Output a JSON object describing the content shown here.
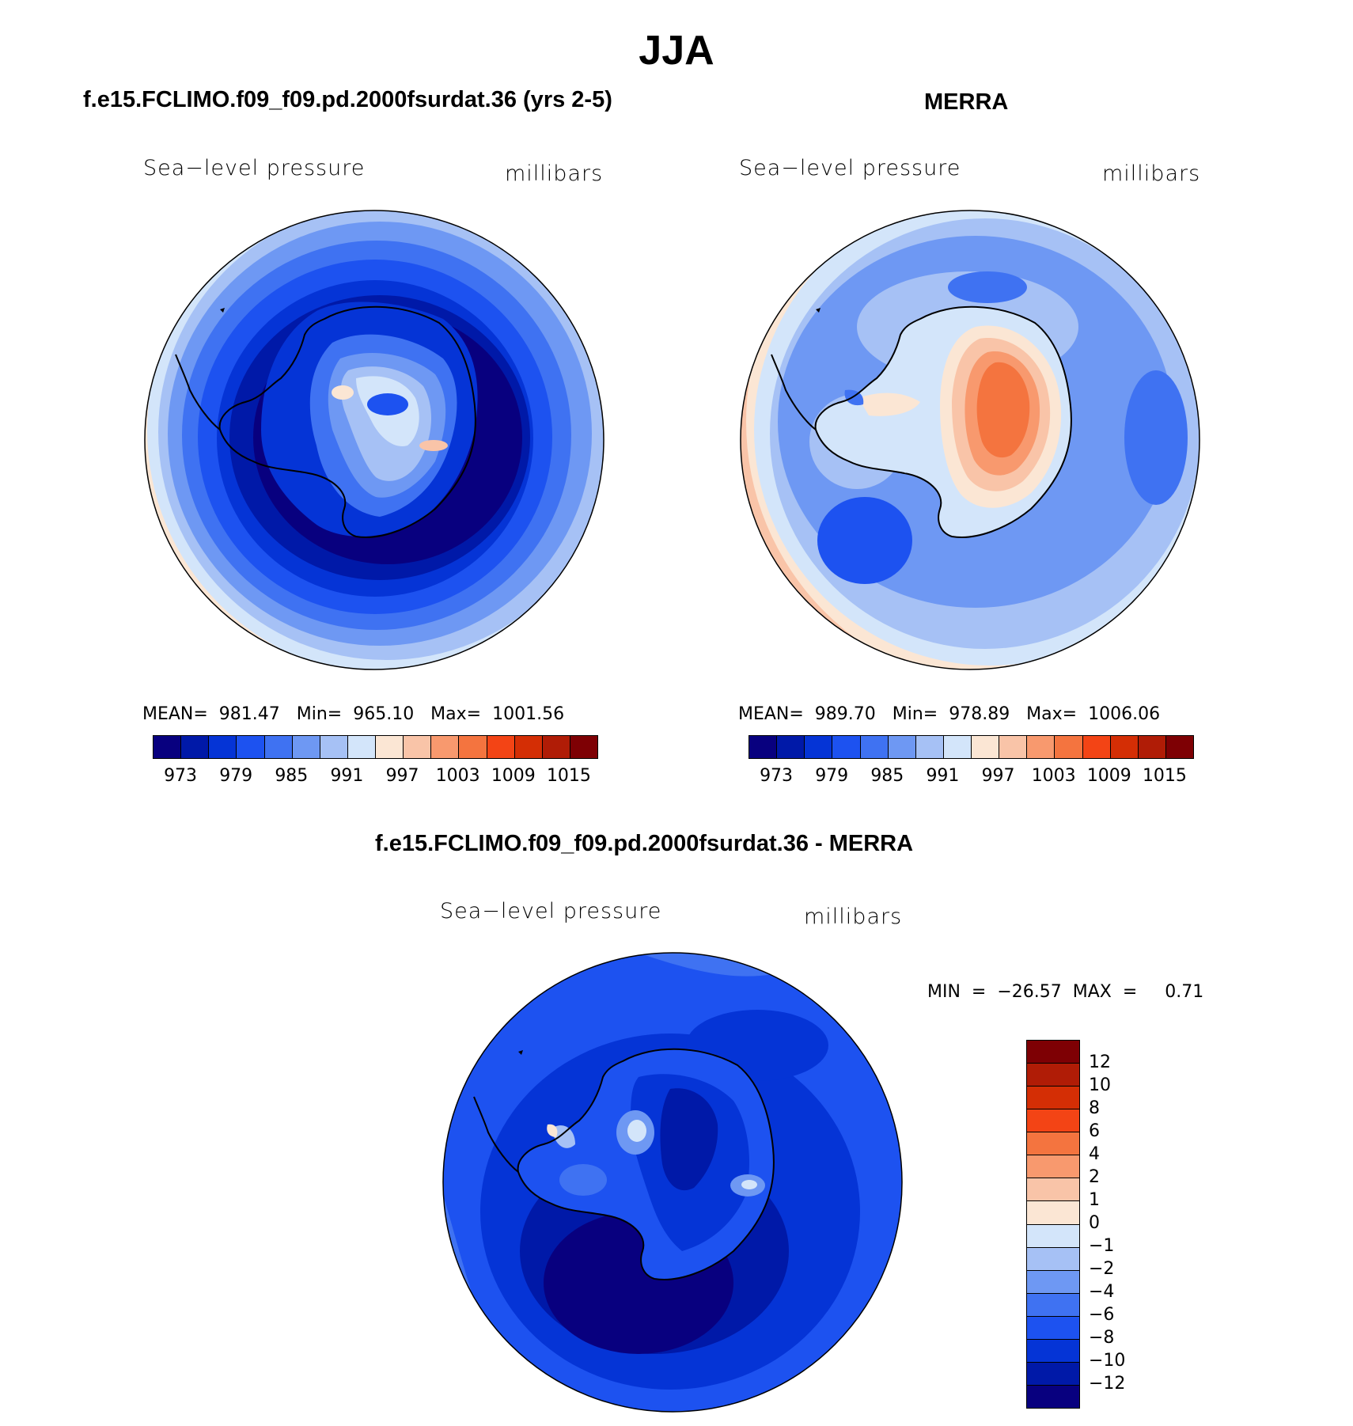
{
  "title": "JJA",
  "panels": [
    {
      "title": "f.e15.FCLIMO.f09_f09.pd.2000fsurdat.36 (yrs 2-5)",
      "variable": "Sea−level pressure",
      "units": "millibars",
      "stats": "MEAN=  981.47   Min=  965.10   Max=  1001.56",
      "colorbar_labels": [
        "973",
        "979",
        "985",
        "991",
        "997",
        "1003",
        "1009",
        "1015"
      ],
      "colorbar_colors": [
        "#08007f",
        "#0019a8",
        "#0534d6",
        "#1d52f0",
        "#3f72f2",
        "#6e98f3",
        "#a6c1f5",
        "#d3e5fa",
        "#fbe6d4",
        "#f9c4a8",
        "#f8996e",
        "#f4743f",
        "#f34415",
        "#d42e05",
        "#b01c06",
        "#7e0004"
      ]
    },
    {
      "title": "MERRA",
      "variable": "Sea−level pressure",
      "units": "millibars",
      "stats": "MEAN=  989.70   Min=  978.89   Max=  1006.06",
      "colorbar_labels": [
        "973",
        "979",
        "985",
        "991",
        "997",
        "1003",
        "1009",
        "1015"
      ],
      "colorbar_colors": [
        "#08007f",
        "#0019a8",
        "#0534d6",
        "#1d52f0",
        "#3f72f2",
        "#6e98f3",
        "#a6c1f5",
        "#d3e5fa",
        "#fbe6d4",
        "#f9c4a8",
        "#f8996e",
        "#f4743f",
        "#f34415",
        "#d42e05",
        "#b01c06",
        "#7e0004"
      ]
    },
    {
      "title": "f.e15.FCLIMO.f09_f09.pd.2000fsurdat.36 - MERRA",
      "variable": "Sea−level pressure",
      "units": "millibars",
      "stats": "MIN  =  −26.57  MAX  =     0.71",
      "colorbar_labels": [
        "12",
        "10",
        "8",
        "6",
        "4",
        "2",
        "1",
        "0",
        "−1",
        "−2",
        "−4",
        "−6",
        "−8",
        "−10",
        "−12"
      ],
      "colorbar_colors": [
        "#7e0004",
        "#b01c06",
        "#d42e05",
        "#f34415",
        "#f4743f",
        "#f8996e",
        "#f9c4a8",
        "#fbe6d4",
        "#d3e5fa",
        "#a6c1f5",
        "#6e98f3",
        "#3f72f2",
        "#1d52f0",
        "#0534d6",
        "#0019a8",
        "#08007f"
      ]
    }
  ]
}
